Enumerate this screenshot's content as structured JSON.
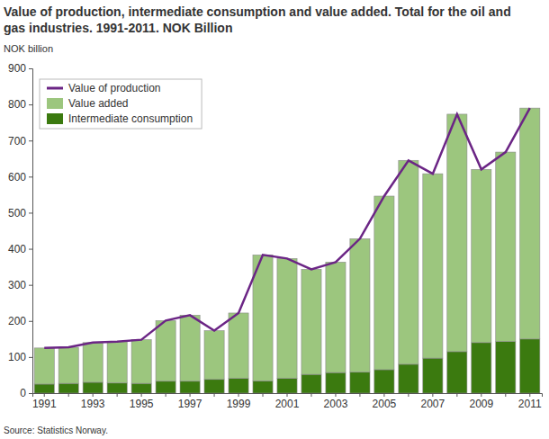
{
  "chart_data": {
    "type": "bar",
    "title": "Value of production, intermediate consumption and value added. Total for the oil and gas industries. 1991-2011. NOK Billion",
    "y_label": "NOK billion",
    "source": "Source: Statistics Norway.",
    "categories": [
      "1991",
      null,
      "1993",
      null,
      "1995",
      null,
      "1997",
      null,
      "1999",
      null,
      "2001",
      null,
      "2003",
      null,
      "2005",
      null,
      "2007",
      null,
      "2009",
      null,
      "2011"
    ],
    "stacked": true,
    "legend": "upper left",
    "grid": false,
    "ylim": [
      0,
      900
    ],
    "yticks": [
      0,
      100,
      200,
      300,
      400,
      500,
      600,
      700,
      800,
      900
    ],
    "series": [
      {
        "name": "Value of production",
        "type": "line",
        "color": "#6b2585",
        "values": [
          125,
          127,
          140,
          143,
          148,
          201,
          216,
          173,
          222,
          383,
          373,
          343,
          363,
          428,
          546,
          645,
          608,
          773,
          620,
          668,
          790
        ]
      },
      {
        "name": "Value added",
        "type": "bar",
        "color": "#9cc67e",
        "values": [
          100,
          100,
          110,
          115,
          121,
          168,
          183,
          135,
          181,
          349,
          332,
          291,
          306,
          370,
          481,
          565,
          511,
          658,
          480,
          525,
          640
        ]
      },
      {
        "name": "Intermediate consumption",
        "type": "bar",
        "color": "#3b7a0f",
        "values": [
          25,
          27,
          30,
          28,
          27,
          33,
          33,
          38,
          41,
          34,
          41,
          52,
          57,
          58,
          65,
          80,
          97,
          115,
          140,
          143,
          150
        ]
      }
    ]
  }
}
